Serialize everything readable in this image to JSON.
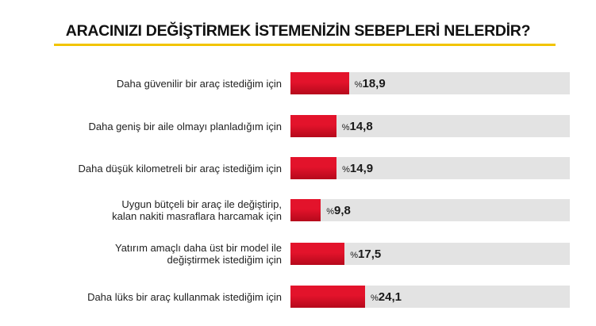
{
  "title": "ARACINIZI DEĞİŞTİRMEK İSTEMENİZİN SEBEPLERİ NELERDİR?",
  "colors": {
    "bar": "#e3132b",
    "track": "#e3e3e3",
    "underline": "#f2c400"
  },
  "chart_data": {
    "type": "bar",
    "orientation": "horizontal",
    "title": "ARACINIZI DEĞİŞTİRMEK İSTEMENİZİN SEBEPLERİ NELERDİR?",
    "value_prefix": "%",
    "categories": [
      "Daha güvenilir bir araç istediğim için",
      "Daha geniş bir aile olmayı planladığım için",
      "Daha düşük kilometreli bir araç istediğim için",
      "Uygun bütçeli bir araç ile değiştirip,\nkalan nakiti masraflara harcamak için",
      "Yatırım amaçlı daha üst bir model ile\ndeğiştirmek istediğim için",
      "Daha lüks bir araç kullanmak istediğim için"
    ],
    "values": [
      18.9,
      14.8,
      14.9,
      9.8,
      17.5,
      24.1
    ],
    "value_labels": [
      "18,9",
      "14,8",
      "14,9",
      "9,8",
      "17,5",
      "24,1"
    ],
    "xlim": [
      0,
      100
    ],
    "grid": false,
    "legend": "none"
  }
}
